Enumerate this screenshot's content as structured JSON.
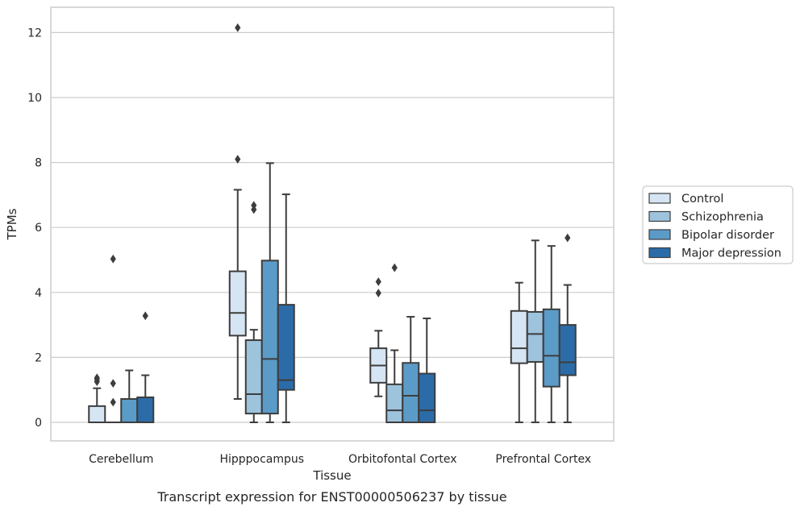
{
  "chart_data": {
    "type": "boxplot",
    "title": "Transcript expression for ENST00000506237 by tissue",
    "xlabel": "Tissue",
    "ylabel": "TPMs",
    "ylim": [
      -0.6,
      12.8
    ],
    "yticks": [
      0,
      2,
      4,
      6,
      8,
      10,
      12
    ],
    "grid": true,
    "legend_position": "right",
    "categories": [
      "Cerebellum",
      "Hipppocampus",
      "Orbitofontal Cortex",
      "Prefrontal Cortex"
    ],
    "series": [
      {
        "name": "Control",
        "color": "#d6e5f3",
        "boxes": [
          {
            "whislo": 0,
            "q1": 0,
            "med": 0,
            "q3": 0.5,
            "whishi": 1.05,
            "fliers": [
              1.25,
              1.32,
              1.37
            ]
          },
          {
            "whislo": 0.72,
            "q1": 2.67,
            "med": 3.37,
            "q3": 4.65,
            "whishi": 7.16,
            "fliers": [
              8.1,
              12.15
            ]
          },
          {
            "whislo": 0.8,
            "q1": 1.22,
            "med": 1.75,
            "q3": 2.28,
            "whishi": 2.82,
            "fliers": [
              3.98,
              4.33
            ]
          },
          {
            "whislo": 0,
            "q1": 1.82,
            "med": 2.28,
            "q3": 3.43,
            "whishi": 4.3,
            "fliers": []
          }
        ]
      },
      {
        "name": "Schizophrenia",
        "color": "#9dc3dd",
        "boxes": [
          {
            "whislo": 0,
            "q1": 0,
            "med": 0,
            "q3": 0,
            "whishi": 0,
            "fliers": [
              0.62,
              1.2,
              5.03
            ]
          },
          {
            "whislo": 0,
            "q1": 0.27,
            "med": 0.87,
            "q3": 2.53,
            "whishi": 2.85,
            "fliers": [
              6.55,
              6.68
            ]
          },
          {
            "whislo": 0,
            "q1": 0,
            "med": 0.37,
            "q3": 1.17,
            "whishi": 2.22,
            "fliers": [
              4.76
            ]
          },
          {
            "whislo": 0,
            "q1": 1.86,
            "med": 2.72,
            "q3": 3.4,
            "whishi": 5.6,
            "fliers": []
          }
        ]
      },
      {
        "name": "Bipolar disorder",
        "color": "#5b9bc8",
        "boxes": [
          {
            "whislo": 0,
            "q1": 0,
            "med": 0,
            "q3": 0.72,
            "whishi": 1.6,
            "fliers": []
          },
          {
            "whislo": 0,
            "q1": 0.27,
            "med": 1.95,
            "q3": 4.98,
            "whishi": 7.98,
            "fliers": []
          },
          {
            "whislo": 0,
            "q1": 0,
            "med": 0.82,
            "q3": 1.83,
            "whishi": 3.25,
            "fliers": []
          },
          {
            "whislo": 0,
            "q1": 1.1,
            "med": 2.05,
            "q3": 3.48,
            "whishi": 5.43,
            "fliers": []
          }
        ]
      },
      {
        "name": "Major depression",
        "color": "#2b6ca8",
        "boxes": [
          {
            "whislo": 0,
            "q1": 0,
            "med": 0,
            "q3": 0.77,
            "whishi": 1.45,
            "fliers": [
              3.28
            ]
          },
          {
            "whislo": 0,
            "q1": 1.0,
            "med": 1.3,
            "q3": 3.62,
            "whishi": 7.02,
            "fliers": []
          },
          {
            "whislo": 0,
            "q1": 0,
            "med": 0.37,
            "q3": 1.5,
            "whishi": 3.2,
            "fliers": []
          },
          {
            "whislo": 0,
            "q1": 1.45,
            "med": 1.85,
            "q3": 3.0,
            "whishi": 4.23,
            "fliers": [
              5.68
            ]
          }
        ]
      }
    ]
  }
}
